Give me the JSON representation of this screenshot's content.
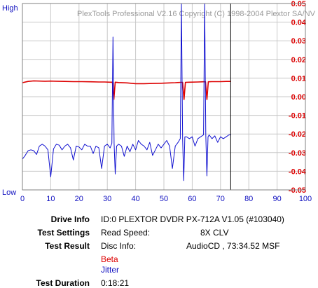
{
  "chart_data": {
    "type": "line",
    "watermark": "PlexTools Professional V2.16 Copyright (C) 1998-2004 Plextor SA/NV",
    "y_left_labels": {
      "top": "High",
      "bottom": "Low"
    },
    "x_ticks": [
      0,
      10,
      20,
      30,
      40,
      50,
      60,
      70,
      80,
      90,
      100
    ],
    "xlim": [
      0,
      100
    ],
    "y_right_ticks": [
      "0.05",
      "0.04",
      "0.03",
      "0.02",
      "0.01",
      "0.00",
      "-0.01",
      "-0.02",
      "-0.03",
      "-0.04",
      "-0.05"
    ],
    "ylim_right": [
      -0.05,
      0.05
    ],
    "end_marker_x": 73.6,
    "grid": true,
    "colors": {
      "beta": "#dd0000",
      "jitter": "#1010d0",
      "grid": "#c8c8c8",
      "marker": "#000000"
    },
    "series": [
      {
        "name": "Beta",
        "x": [
          0,
          2,
          4,
          6,
          8,
          10,
          12,
          15,
          18,
          21,
          24,
          27,
          29,
          31,
          31.8,
          32.3,
          32.8,
          34,
          37,
          40,
          43,
          46,
          49,
          52,
          54,
          56,
          56.6,
          57.1,
          57.6,
          59,
          62,
          64,
          64.7,
          65.2,
          65.7,
          67,
          70,
          72,
          73.6
        ],
        "values": [
          0.0075,
          0.0082,
          0.0085,
          0.0084,
          0.0083,
          0.0084,
          0.0083,
          0.0082,
          0.0081,
          0.0081,
          0.008,
          0.0079,
          0.0079,
          0.0078,
          0.0078,
          -0.0015,
          0.0078,
          0.0076,
          0.0074,
          0.007,
          0.007,
          0.0071,
          0.0072,
          0.0074,
          0.0075,
          0.0077,
          0.0077,
          -0.0015,
          0.0077,
          0.0078,
          0.0079,
          0.008,
          0.008,
          -0.0015,
          0.008,
          0.0081,
          0.0081,
          0.0082,
          0.0082
        ]
      },
      {
        "name": "Jitter",
        "x": [
          0,
          1,
          2,
          3,
          4,
          5,
          6,
          7,
          8,
          9,
          10,
          11,
          12,
          13,
          14,
          15,
          16,
          17,
          18,
          19,
          20,
          21,
          22,
          23,
          24,
          25,
          26,
          27,
          28,
          29,
          30,
          31,
          31.6,
          32,
          32.4,
          32.8,
          33.3,
          34,
          35,
          36,
          37,
          38,
          39,
          40,
          41,
          42,
          43,
          44,
          45,
          46,
          47,
          48,
          49,
          50,
          51,
          52,
          53,
          54,
          55,
          55.8,
          56.2,
          56.6,
          57.0,
          57.4,
          58,
          59,
          60,
          61,
          62,
          63,
          64,
          64.4,
          64.8,
          65.2,
          65.6,
          66,
          67,
          68,
          69,
          70,
          71,
          72,
          73,
          73.6
        ],
        "values": [
          -0.0335,
          -0.0315,
          -0.029,
          -0.0285,
          -0.029,
          -0.031,
          -0.0265,
          -0.0255,
          -0.0265,
          -0.0285,
          -0.043,
          -0.028,
          -0.0255,
          -0.026,
          -0.0285,
          -0.0265,
          -0.0255,
          -0.0275,
          -0.034,
          -0.0265,
          -0.027,
          -0.0285,
          -0.0255,
          -0.0265,
          -0.0265,
          -0.0305,
          -0.0265,
          -0.0275,
          -0.0385,
          -0.0265,
          -0.0255,
          -0.0275,
          -0.025,
          0.032,
          -0.025,
          -0.0415,
          -0.0265,
          -0.0255,
          -0.0265,
          -0.032,
          -0.0265,
          -0.0295,
          -0.0255,
          -0.0285,
          -0.0235,
          -0.0255,
          -0.0265,
          -0.0285,
          -0.0245,
          -0.0315,
          -0.0285,
          -0.0255,
          -0.0275,
          -0.0255,
          -0.0235,
          -0.0265,
          -0.0385,
          -0.0265,
          -0.0245,
          -0.0225,
          0.052,
          -0.0225,
          -0.045,
          -0.0215,
          -0.0215,
          -0.0225,
          -0.0215,
          -0.0265,
          -0.0225,
          -0.0215,
          -0.0205,
          0.052,
          -0.0205,
          -0.0425,
          -0.0215,
          -0.0205,
          -0.0225,
          -0.021,
          -0.0245,
          -0.0215,
          -0.0225,
          -0.0215,
          -0.0205,
          -0.0205
        ]
      }
    ]
  },
  "info": {
    "drive_info_label": "Drive Info",
    "drive_info_value": "ID:0 PLEXTOR DVDR PX-712A V1.05 (#103040)",
    "test_settings_label": "Test Settings",
    "read_speed_label": "Read Speed:",
    "read_speed_value": "8X CLV",
    "test_result_label": "Test Result",
    "disc_info_label": "Disc Info:",
    "disc_info_value": "AudioCD , 73:34.52 MSF",
    "legend_beta": "Beta",
    "legend_jitter": "Jitter",
    "test_duration_label": "Test Duration",
    "test_duration_value": "0:18:21"
  }
}
